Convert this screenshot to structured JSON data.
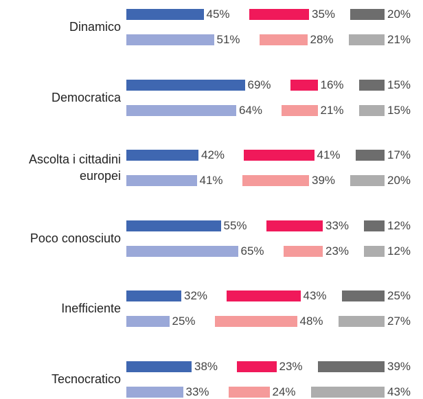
{
  "chart_data": {
    "type": "bar",
    "categories": [
      "Dinamico",
      "Democratica",
      "Ascolta i cittadini europei",
      "Poco conosciuto",
      "Inefficiente",
      "Tecnocratico"
    ],
    "series": [
      {
        "color": "#3f67b1",
        "values": [
          45,
          69,
          42,
          55,
          32,
          38
        ],
        "value_labels": [
          "45%",
          "69%",
          "42%",
          "55%",
          "32%",
          "38%"
        ]
      },
      {
        "color": "#f0195a",
        "values": [
          35,
          16,
          41,
          33,
          43,
          23
        ],
        "value_labels": [
          "35%",
          "16%",
          "41%",
          "33%",
          "43%",
          "23%"
        ]
      },
      {
        "color": "#6d6d6d",
        "values": [
          20,
          15,
          17,
          12,
          25,
          39
        ],
        "value_labels": [
          "20%",
          "15%",
          "17%",
          "12%",
          "25%",
          "39%"
        ]
      },
      {
        "color": "#9aa8d8",
        "values": [
          51,
          64,
          41,
          65,
          25,
          33
        ],
        "value_labels": [
          "51%",
          "64%",
          "41%",
          "65%",
          "25%",
          "33%"
        ]
      },
      {
        "color": "#f59a9a",
        "values": [
          28,
          21,
          39,
          23,
          48,
          24
        ],
        "value_labels": [
          "28%",
          "21%",
          "39%",
          "23%",
          "48%",
          "24%"
        ]
      },
      {
        "color": "#adadad",
        "values": [
          21,
          15,
          20,
          12,
          27,
          43
        ],
        "value_labels": [
          "21%",
          "15%",
          "20%",
          "12%",
          "27%",
          "43%"
        ]
      }
    ]
  }
}
